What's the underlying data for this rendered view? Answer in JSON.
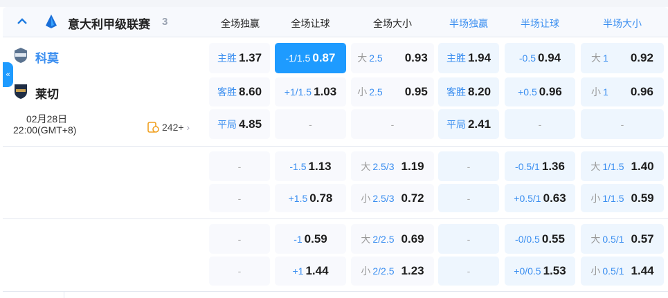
{
  "league": {
    "name": "意大利甲级联赛",
    "count": "3"
  },
  "columns": [
    "全场独赢",
    "全场让球",
    "全场大小",
    "半场独赢",
    "半场让球",
    "半场大小"
  ],
  "match": {
    "home": "科莫",
    "away": "莱切",
    "date": "02月28日",
    "time": "22:00(GMT+8)",
    "markets_count": "242+"
  },
  "colors": {
    "accent": "#1e9bff",
    "label": "#3a8ef0"
  },
  "blocks": [
    [
      [
        {
          "lab": "主胜",
          "val": "1.37"
        },
        {
          "lab": "-1/1.5",
          "val": "0.87",
          "selected": true
        },
        {
          "pre": "大",
          "lab": "2.5",
          "val": "0.93"
        },
        {
          "lab": "主胜",
          "val": "1.94"
        },
        {
          "lab": "-0.5",
          "val": "0.94"
        },
        {
          "pre": "大",
          "lab": "1",
          "val": "0.92"
        }
      ],
      [
        {
          "lab": "客胜",
          "val": "8.60"
        },
        {
          "lab": "+1/1.5",
          "val": "1.03"
        },
        {
          "pre": "小",
          "lab": "2.5",
          "val": "0.95"
        },
        {
          "lab": "客胜",
          "val": "8.20"
        },
        {
          "lab": "+0.5",
          "val": "0.96"
        },
        {
          "pre": "小",
          "lab": "1",
          "val": "0.96"
        }
      ],
      [
        {
          "lab": "平局",
          "val": "4.85"
        },
        {
          "dash": "-"
        },
        {
          "dash": "-"
        },
        {
          "lab": "平局",
          "val": "2.41"
        },
        {
          "dash": "-"
        },
        {
          "dash": "-"
        }
      ]
    ],
    [
      [
        {
          "dash": "-"
        },
        {
          "lab": "-1.5",
          "val": "1.13"
        },
        {
          "pre": "大",
          "lab": "2.5/3",
          "val": "1.19"
        },
        {
          "dash": "-"
        },
        {
          "lab": "-0.5/1",
          "val": "1.36"
        },
        {
          "pre": "大",
          "lab": "1/1.5",
          "val": "1.40"
        }
      ],
      [
        {
          "dash": "-"
        },
        {
          "lab": "+1.5",
          "val": "0.78"
        },
        {
          "pre": "小",
          "lab": "2.5/3",
          "val": "0.72"
        },
        {
          "dash": "-"
        },
        {
          "lab": "+0.5/1",
          "val": "0.63"
        },
        {
          "pre": "小",
          "lab": "1/1.5",
          "val": "0.59"
        }
      ]
    ],
    [
      [
        {
          "dash": "-"
        },
        {
          "lab": "-1",
          "val": "0.59"
        },
        {
          "pre": "大",
          "lab": "2/2.5",
          "val": "0.69"
        },
        {
          "dash": "-"
        },
        {
          "lab": "-0/0.5",
          "val": "0.55"
        },
        {
          "pre": "大",
          "lab": "0.5/1",
          "val": "0.57"
        }
      ],
      [
        {
          "dash": "-"
        },
        {
          "lab": "+1",
          "val": "1.44"
        },
        {
          "pre": "小",
          "lab": "2/2.5",
          "val": "1.23"
        },
        {
          "dash": "-"
        },
        {
          "lab": "+0/0.5",
          "val": "1.53"
        },
        {
          "pre": "小",
          "lab": "0.5/1",
          "val": "1.44"
        }
      ]
    ]
  ]
}
